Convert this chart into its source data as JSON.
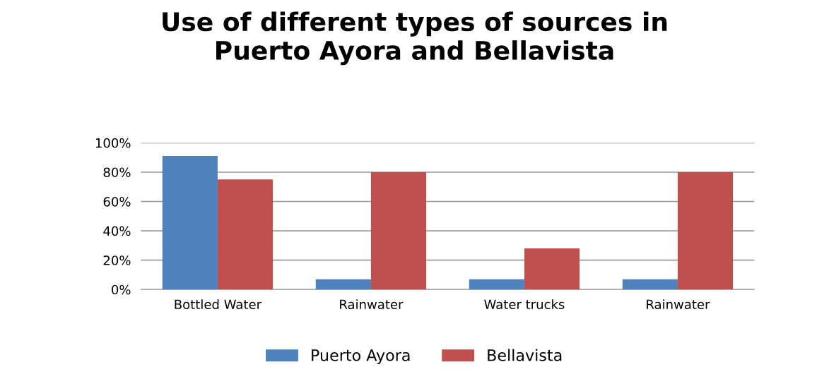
{
  "chart_data": {
    "type": "bar",
    "title": "Use of different types of sources in\nPuerto Ayora and Bellavista",
    "categories": [
      "Bottled Water",
      "Rainwater",
      "Water trucks",
      "Rainwater"
    ],
    "series": [
      {
        "name": "Puerto Ayora",
        "color": "#4f81bd",
        "values": [
          91,
          7,
          7,
          7
        ]
      },
      {
        "name": "Bellavista",
        "color": "#c0504d",
        "values": [
          75,
          80,
          28,
          80
        ]
      }
    ],
    "ylim": [
      0,
      100
    ],
    "yticks": [
      {
        "value": 0,
        "label": "0%"
      },
      {
        "value": 20,
        "label": "20%"
      },
      {
        "value": 40,
        "label": "40%"
      },
      {
        "value": 60,
        "label": "60%"
      },
      {
        "value": 80,
        "label": "80%"
      },
      {
        "value": 100,
        "label": "100%"
      }
    ],
    "grid": "y",
    "legend": "bottom"
  }
}
